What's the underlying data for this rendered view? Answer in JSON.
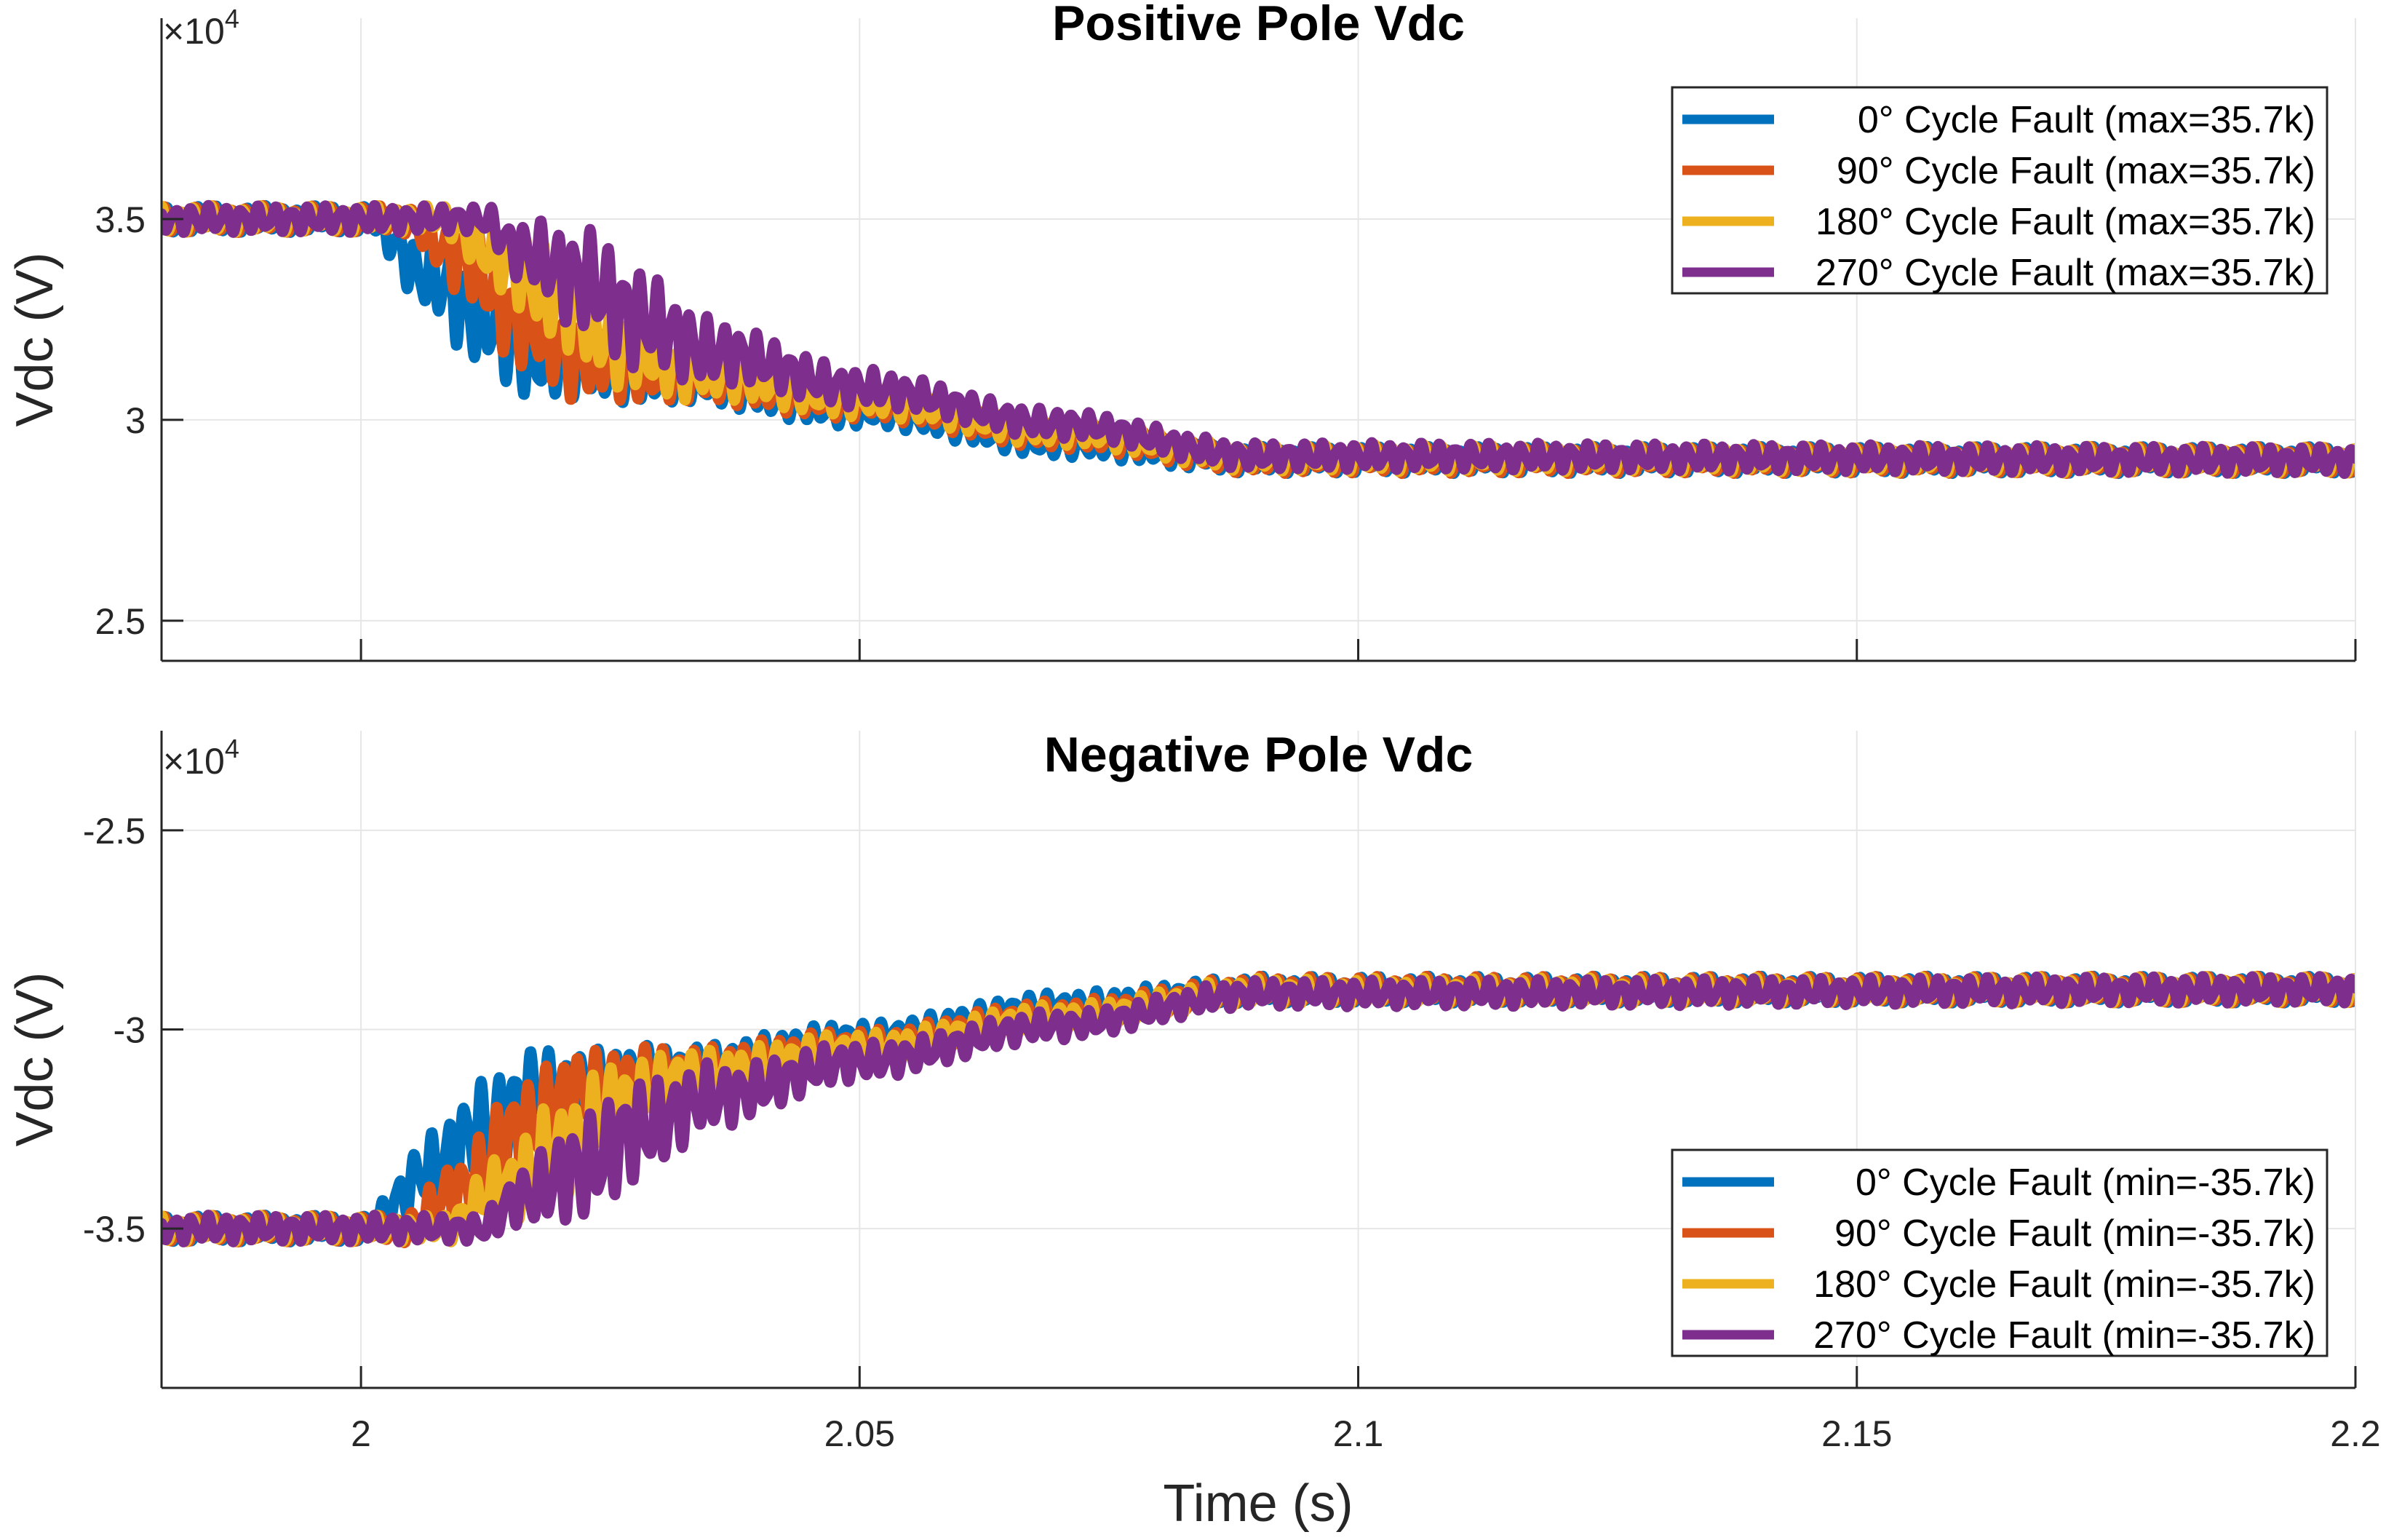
{
  "figure": {
    "xlabel": "Time (s)"
  },
  "chart_data": [
    {
      "type": "line",
      "title": "Positive Pole Vdc",
      "xlabel": "",
      "ylabel": "Vdc (V)",
      "y_exponent_label": "×10",
      "y_exponent_power": "4",
      "xlim": [
        1.98,
        2.2
      ],
      "ylim": [
        24000,
        40000
      ],
      "x_ticks": [
        2,
        2.05,
        2.1,
        2.15,
        2.2
      ],
      "x_tick_labels": [
        "2",
        "2.05",
        "2.1",
        "2.15",
        "2.2"
      ],
      "x_tick_labels_visible": false,
      "y_ticks": [
        25000,
        30000,
        35000
      ],
      "y_tick_labels": [
        "2.5",
        "3",
        "3.5"
      ],
      "grid": true,
      "legend_position": "top-right",
      "series": [
        {
          "name": "0° Cycle Fault (max=35.7k)",
          "color": "#0072BD",
          "fault_time": 2.0005,
          "envelope": [
            [
              1.98,
              35000
            ],
            [
              2.0005,
              35000
            ],
            [
              2.007,
              33500
            ],
            [
              2.012,
              32500
            ],
            [
              2.018,
              31500
            ],
            [
              2.03,
              31000
            ],
            [
              2.05,
              30200
            ],
            [
              2.07,
              29400
            ],
            [
              2.09,
              29000
            ],
            [
              2.2,
              29000
            ]
          ],
          "ripple_amplitude_steady": 250,
          "ripple_amplitude_transient": 900
        },
        {
          "name": "90° Cycle Fault (max=35.7k)",
          "color": "#D95319",
          "fault_time": 2.004,
          "envelope": [
            [
              1.98,
              35000
            ],
            [
              2.004,
              35000
            ],
            [
              2.01,
              34000
            ],
            [
              2.016,
              32500
            ],
            [
              2.022,
              31500
            ],
            [
              2.03,
              31100
            ],
            [
              2.05,
              30400
            ],
            [
              2.07,
              29600
            ],
            [
              2.09,
              29000
            ],
            [
              2.2,
              29000
            ]
          ],
          "ripple_amplitude_steady": 250,
          "ripple_amplitude_transient": 900
        },
        {
          "name": "180° Cycle Fault (max=35.7k)",
          "color": "#EDB120",
          "fault_time": 2.008,
          "envelope": [
            [
              1.98,
              35000
            ],
            [
              2.008,
              35000
            ],
            [
              2.014,
              34000
            ],
            [
              2.02,
              33000
            ],
            [
              2.026,
              31800
            ],
            [
              2.033,
              31200
            ],
            [
              2.05,
              30500
            ],
            [
              2.07,
              29700
            ],
            [
              2.09,
              29050
            ],
            [
              2.2,
              29000
            ]
          ],
          "ripple_amplitude_steady": 250,
          "ripple_amplitude_transient": 900
        },
        {
          "name": "270° Cycle Fault (max=35.7k)",
          "color": "#7E2F8E",
          "fault_time": 2.012,
          "envelope": [
            [
              1.98,
              35000
            ],
            [
              2.012,
              35000
            ],
            [
              2.016,
              34200
            ],
            [
              2.022,
              33500
            ],
            [
              2.028,
              32500
            ],
            [
              2.035,
              31700
            ],
            [
              2.05,
              30800
            ],
            [
              2.07,
              29900
            ],
            [
              2.09,
              29100
            ],
            [
              2.2,
              29000
            ]
          ],
          "ripple_amplitude_steady": 250,
          "ripple_amplitude_transient": 1000
        }
      ]
    },
    {
      "type": "line",
      "title": "Negative Pole Vdc",
      "xlabel": "Time (s)",
      "ylabel": "Vdc (V)",
      "y_exponent_label": "×10",
      "y_exponent_power": "4",
      "xlim": [
        1.98,
        2.2
      ],
      "ylim": [
        -39000,
        -22500
      ],
      "x_ticks": [
        2,
        2.05,
        2.1,
        2.15,
        2.2
      ],
      "x_tick_labels": [
        "2",
        "2.05",
        "2.1",
        "2.15",
        "2.2"
      ],
      "x_tick_labels_visible": true,
      "y_ticks": [
        -35000,
        -30000,
        -25000
      ],
      "y_tick_labels": [
        "-3.5",
        "-3",
        "-2.5"
      ],
      "grid": true,
      "legend_position": "bottom-right",
      "series": [
        {
          "name": "0° Cycle Fault (min=-35.7k)",
          "color": "#0072BD",
          "fault_time": 2.0005,
          "envelope": [
            [
              1.98,
              -35000
            ],
            [
              2.0005,
              -35000
            ],
            [
              2.007,
              -33500
            ],
            [
              2.012,
              -32500
            ],
            [
              2.018,
              -31500
            ],
            [
              2.03,
              -31000
            ],
            [
              2.05,
              -30200
            ],
            [
              2.07,
              -29400
            ],
            [
              2.09,
              -29000
            ],
            [
              2.2,
              -29000
            ]
          ],
          "ripple_amplitude_steady": 250,
          "ripple_amplitude_transient": 900
        },
        {
          "name": "90° Cycle Fault (min=-35.7k)",
          "color": "#D95319",
          "fault_time": 2.004,
          "envelope": [
            [
              1.98,
              -35000
            ],
            [
              2.004,
              -35000
            ],
            [
              2.01,
              -34000
            ],
            [
              2.016,
              -32500
            ],
            [
              2.022,
              -31500
            ],
            [
              2.03,
              -31100
            ],
            [
              2.05,
              -30400
            ],
            [
              2.07,
              -29600
            ],
            [
              2.09,
              -29000
            ],
            [
              2.2,
              -29000
            ]
          ],
          "ripple_amplitude_steady": 250,
          "ripple_amplitude_transient": 900
        },
        {
          "name": "180° Cycle Fault (min=-35.7k)",
          "color": "#EDB120",
          "fault_time": 2.008,
          "envelope": [
            [
              1.98,
              -35000
            ],
            [
              2.008,
              -35000
            ],
            [
              2.014,
              -34000
            ],
            [
              2.02,
              -33000
            ],
            [
              2.026,
              -31800
            ],
            [
              2.033,
              -31200
            ],
            [
              2.05,
              -30500
            ],
            [
              2.07,
              -29700
            ],
            [
              2.09,
              -29050
            ],
            [
              2.2,
              -29000
            ]
          ],
          "ripple_amplitude_steady": 250,
          "ripple_amplitude_transient": 900
        },
        {
          "name": "270° Cycle Fault (min=-35.7k)",
          "color": "#7E2F8E",
          "fault_time": 2.012,
          "envelope": [
            [
              1.98,
              -35000
            ],
            [
              2.012,
              -35000
            ],
            [
              2.016,
              -34200
            ],
            [
              2.022,
              -33500
            ],
            [
              2.028,
              -32500
            ],
            [
              2.035,
              -31700
            ],
            [
              2.05,
              -30800
            ],
            [
              2.07,
              -29900
            ],
            [
              2.09,
              -29100
            ],
            [
              2.2,
              -29000
            ]
          ],
          "ripple_amplitude_steady": 250,
          "ripple_amplitude_transient": 1000
        }
      ]
    }
  ]
}
